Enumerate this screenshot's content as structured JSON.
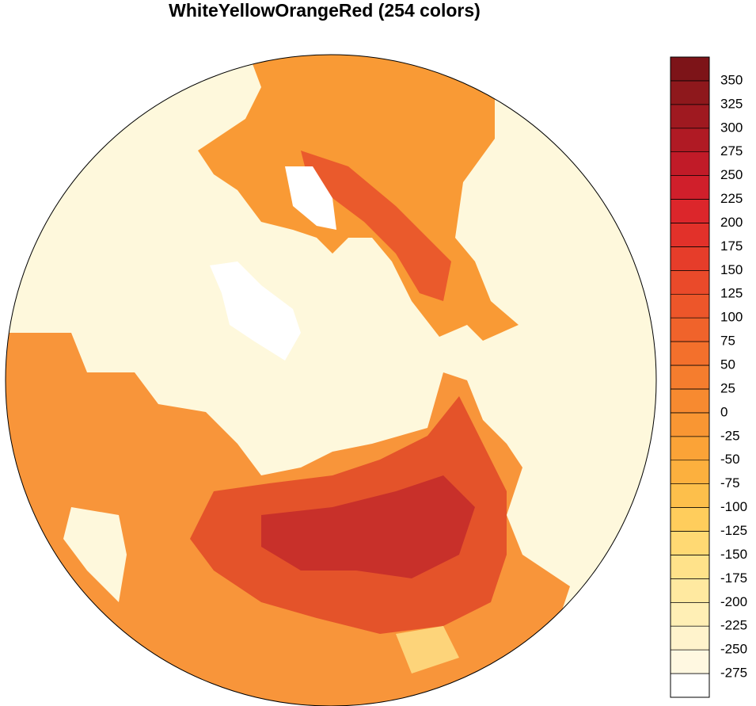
{
  "title": "WhiteYellowOrangeRed (254 colors)",
  "colorbar": {
    "ticks": [
      -275,
      -250,
      -225,
      -200,
      -175,
      -150,
      -125,
      -100,
      -75,
      -50,
      -25,
      0,
      25,
      50,
      75,
      100,
      125,
      150,
      175,
      200,
      225,
      250,
      275,
      300,
      325,
      350
    ],
    "colors": [
      "#ffffff",
      "#fff8e1",
      "#fff3cc",
      "#ffefb5",
      "#ffe9a0",
      "#ffe28a",
      "#ffd973",
      "#ffcd5c",
      "#fdbf4b",
      "#fcb03e",
      "#fba337",
      "#f99633",
      "#f78a30",
      "#f57d2e",
      "#f3702c",
      "#f0632b",
      "#ed562a",
      "#ea4a2a",
      "#e63d2a",
      "#e2312a",
      "#dc262b",
      "#d01f2b",
      "#c11b28",
      "#b01a24",
      "#9f1920",
      "#8e181c",
      "#7d1418"
    ]
  }
}
